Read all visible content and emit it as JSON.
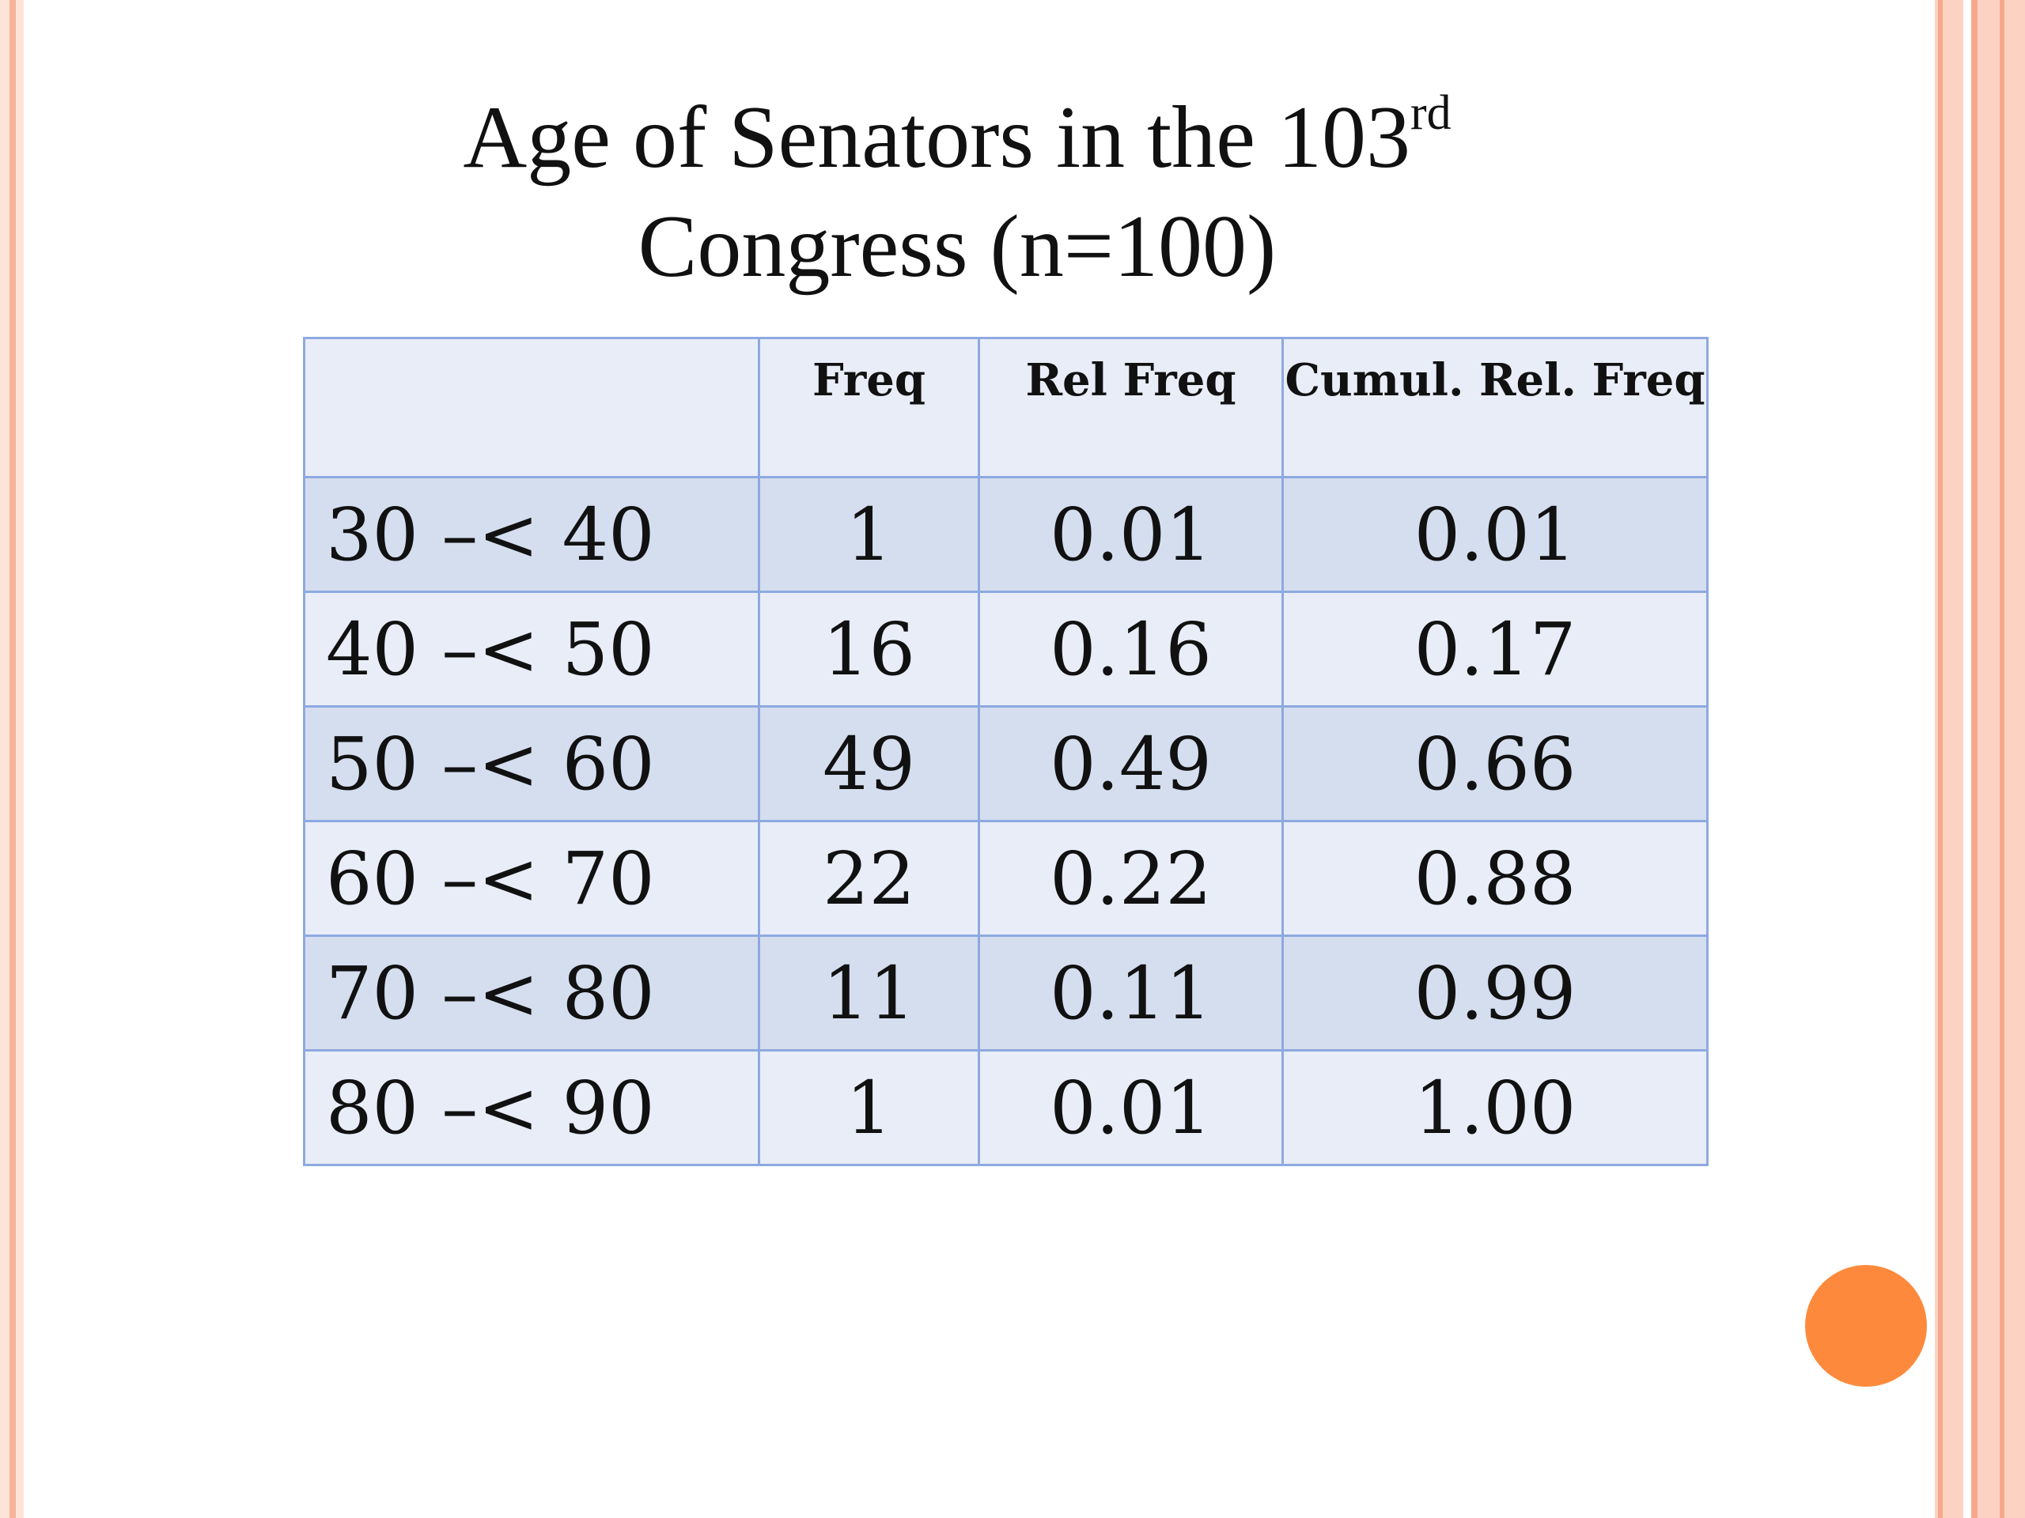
{
  "slide": {
    "title_line1": "Age of Senators in the 103",
    "title_sup": "rd",
    "title_line2": "Congress (n=100)"
  },
  "colors": {
    "accent_orange": "#fd8a3c",
    "side_band": "#fcd3c2",
    "table_border": "#8ea9e0",
    "row_dark": "#d5deef",
    "row_light": "#e9edf8"
  },
  "table": {
    "headers": [
      "",
      "Freq",
      "Rel Freq",
      "Cumul. Rel. Freq"
    ],
    "rows": [
      {
        "range": "30 –< 40",
        "freq": "1",
        "rel": "0.01",
        "cum": "0.01"
      },
      {
        "range": "40 –< 50",
        "freq": "16",
        "rel": "0.16",
        "cum": "0.17"
      },
      {
        "range": "50 –< 60",
        "freq": "49",
        "rel": "0.49",
        "cum": "0.66"
      },
      {
        "range": "60 –< 70",
        "freq": "22",
        "rel": "0.22",
        "cum": "0.88"
      },
      {
        "range": "70 –< 80",
        "freq": "11",
        "rel": "0.11",
        "cum": "0.99"
      },
      {
        "range": "80 –< 90",
        "freq": "1",
        "rel": "0.01",
        "cum": "1.00"
      }
    ]
  }
}
